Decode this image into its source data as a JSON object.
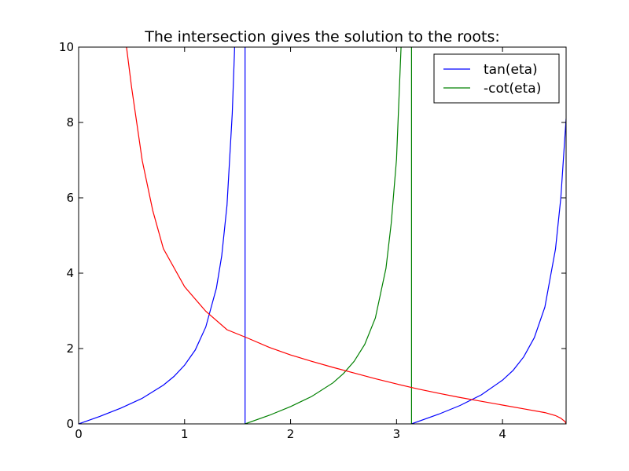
{
  "chart_data": {
    "type": "line",
    "title": "The intersection gives the solution to the  roots:",
    "xlabel": "",
    "ylabel": "",
    "xlim": [
      0,
      4.6
    ],
    "ylim": [
      0,
      10
    ],
    "grid": false,
    "legend_position": "top-right",
    "xticks": [
      {
        "value": 0,
        "label": "0"
      },
      {
        "value": 1,
        "label": "1"
      },
      {
        "value": 2,
        "label": "2"
      },
      {
        "value": 3,
        "label": "3"
      },
      {
        "value": 4,
        "label": "4"
      }
    ],
    "yticks": [
      {
        "value": 0,
        "label": "0"
      },
      {
        "value": 2,
        "label": "2"
      },
      {
        "value": 4,
        "label": "4"
      },
      {
        "value": 6,
        "label": "6"
      },
      {
        "value": 8,
        "label": "8"
      },
      {
        "value": 10,
        "label": "10"
      }
    ],
    "series": [
      {
        "name": "tan(eta)",
        "color": "#0000ff",
        "in_legend": true,
        "segments": [
          [
            [
              0,
              0
            ],
            [
              0.2,
              0.2
            ],
            [
              0.4,
              0.42
            ],
            [
              0.6,
              0.68
            ],
            [
              0.8,
              1.03
            ],
            [
              0.9,
              1.26
            ],
            [
              1.0,
              1.56
            ],
            [
              1.1,
              1.96
            ],
            [
              1.2,
              2.57
            ],
            [
              1.3,
              3.6
            ],
            [
              1.35,
              4.46
            ],
            [
              1.4,
              5.8
            ],
            [
              1.45,
              8.24
            ],
            [
              1.47,
              9.8
            ],
            [
              1.472,
              10
            ]
          ],
          [
            [
              1.5708,
              10
            ],
            [
              1.5708,
              0
            ]
          ],
          [
            [
              3.1416,
              0
            ],
            [
              3.4,
              0.26
            ],
            [
              3.6,
              0.49
            ],
            [
              3.8,
              0.77
            ],
            [
              4.0,
              1.16
            ],
            [
              4.1,
              1.42
            ],
            [
              4.2,
              1.78
            ],
            [
              4.3,
              2.29
            ],
            [
              4.4,
              3.1
            ],
            [
              4.5,
              4.64
            ],
            [
              4.55,
              6.0
            ],
            [
              4.6,
              8.1
            ]
          ]
        ]
      },
      {
        "name": "-cot(eta)",
        "color": "#008000",
        "in_legend": true,
        "segments": [
          [
            [
              1.5708,
              0
            ],
            [
              1.8,
              0.23
            ],
            [
              2.0,
              0.46
            ],
            [
              2.2,
              0.73
            ],
            [
              2.4,
              1.09
            ],
            [
              2.5,
              1.34
            ],
            [
              2.6,
              1.66
            ],
            [
              2.7,
              2.11
            ],
            [
              2.8,
              2.81
            ],
            [
              2.9,
              4.13
            ],
            [
              2.95,
              5.33
            ],
            [
              3.0,
              7.02
            ],
            [
              3.04,
              9.8
            ],
            [
              3.043,
              10
            ]
          ],
          [
            [
              3.1416,
              10
            ],
            [
              3.1416,
              0
            ]
          ]
        ]
      },
      {
        "name": "",
        "color": "#ff0000",
        "in_legend": false,
        "segments": [
          [
            [
              0.452,
              10
            ],
            [
              0.5,
              8.93
            ],
            [
              0.6,
              6.99
            ],
            [
              0.7,
              5.66
            ],
            [
              0.8,
              4.65
            ],
            [
              1.0,
              3.64
            ],
            [
              1.2,
              2.99
            ],
            [
              1.4,
              2.5
            ],
            [
              1.6,
              2.27
            ],
            [
              1.8,
              2.03
            ],
            [
              2.0,
              1.83
            ],
            [
              2.2,
              1.66
            ],
            [
              2.4,
              1.5
            ],
            [
              2.6,
              1.35
            ],
            [
              2.8,
              1.2
            ],
            [
              3.0,
              1.06
            ],
            [
              3.2,
              0.93
            ],
            [
              3.4,
              0.81
            ],
            [
              3.6,
              0.7
            ],
            [
              3.8,
              0.6
            ],
            [
              4.0,
              0.5
            ],
            [
              4.2,
              0.4
            ],
            [
              4.4,
              0.3
            ],
            [
              4.5,
              0.22
            ],
            [
              4.55,
              0.15
            ],
            [
              4.59,
              0.06
            ],
            [
              4.6,
              0
            ]
          ]
        ]
      }
    ]
  }
}
